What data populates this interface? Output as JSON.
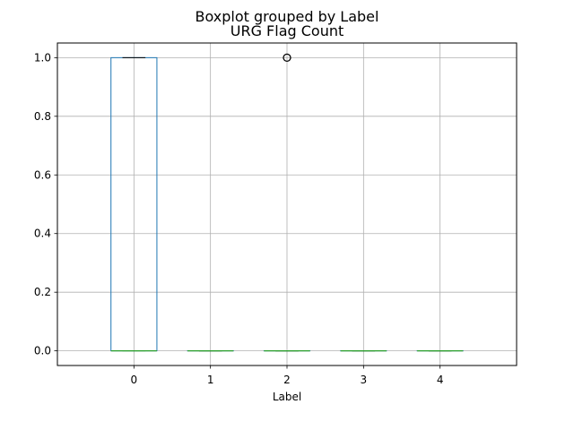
{
  "figure": {
    "suptitle": "Boxplot grouped by Label"
  },
  "chart_data": {
    "type": "boxplot",
    "title": "URG Flag Count",
    "xlabel": "Label",
    "ylabel": "",
    "categories": [
      "0",
      "1",
      "2",
      "3",
      "4"
    ],
    "boxes": [
      {
        "category": "0",
        "q1": 0.0,
        "median": 0.0,
        "q3": 1.0,
        "whisker_low": 0.0,
        "whisker_high": 1.0,
        "outliers": []
      },
      {
        "category": "1",
        "q1": 0.0,
        "median": 0.0,
        "q3": 0.0,
        "whisker_low": 0.0,
        "whisker_high": 0.0,
        "outliers": []
      },
      {
        "category": "2",
        "q1": 0.0,
        "median": 0.0,
        "q3": 0.0,
        "whisker_low": 0.0,
        "whisker_high": 0.0,
        "outliers": [
          1.0
        ]
      },
      {
        "category": "3",
        "q1": 0.0,
        "median": 0.0,
        "q3": 0.0,
        "whisker_low": 0.0,
        "whisker_high": 0.0,
        "outliers": []
      },
      {
        "category": "4",
        "q1": 0.0,
        "median": 0.0,
        "q3": 0.0,
        "whisker_low": 0.0,
        "whisker_high": 0.0,
        "outliers": []
      }
    ],
    "yticks": [
      "0.0",
      "0.2",
      "0.4",
      "0.6",
      "0.8",
      "1.0"
    ],
    "ylim": [
      -0.05,
      1.05
    ],
    "grid": true,
    "colors": {
      "box": "#1f77b4",
      "median": "#2ca02c",
      "whisker": "#1f77b4",
      "cap": "#000000",
      "grid": "#b0b0b0",
      "outlier": "#000000"
    }
  }
}
